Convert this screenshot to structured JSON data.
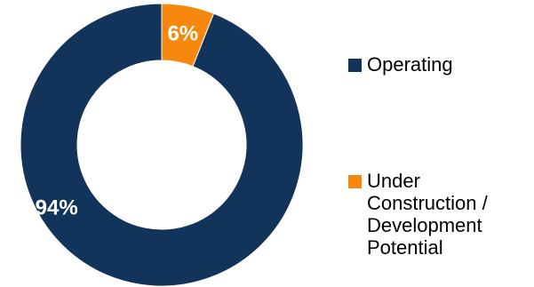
{
  "chart_data": {
    "type": "pie",
    "variant": "donut",
    "title": "",
    "categories": [
      "Operating",
      "Under Construction / Development Potential"
    ],
    "values": [
      94,
      6
    ],
    "labels": [
      "94%",
      "6%"
    ],
    "colors": [
      "#13345a",
      "#f7880e"
    ],
    "legend_position": "right",
    "legend": [
      {
        "label": "Operating",
        "color": "#13345a"
      },
      {
        "label": "Under Construction / Development Potential",
        "color": "#f7880e",
        "lines": [
          "Under",
          "Construction /",
          "Development",
          "Potential"
        ]
      }
    ]
  }
}
